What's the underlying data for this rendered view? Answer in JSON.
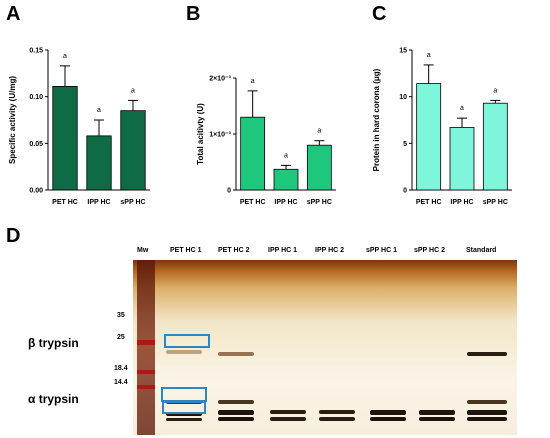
{
  "colors": {
    "panel_a_bar": "#0e6b45",
    "panel_b_bar": "#1fc77c",
    "panel_c_bar": "#7ff5dc",
    "box_outline": "#2e86c1"
  },
  "chart_data": [
    {
      "panel": "A",
      "type": "bar",
      "categories": [
        "PET HC",
        "IPP HC",
        "sPP HC"
      ],
      "values": [
        0.111,
        0.058,
        0.085
      ],
      "errors": [
        0.022,
        0.017,
        0.011
      ],
      "annotations": [
        "a",
        "a",
        "a"
      ],
      "ylabel": "Specific activity (U/mg)",
      "ylim": [
        0,
        0.15
      ],
      "yticks": [
        "0.00",
        "0.05",
        "0.10",
        "0.15"
      ],
      "ytick_values": [
        0,
        0.05,
        0.1,
        0.15
      ],
      "bar_color": "#0e6b45"
    },
    {
      "panel": "B",
      "type": "bar",
      "categories": [
        "PET HC",
        "IPP HC",
        "sPP HC"
      ],
      "values": [
        0.0013,
        0.00037,
        0.0008
      ],
      "errors": [
        0.00047,
        7e-05,
        8e-05
      ],
      "annotations": [
        "a",
        "a",
        "a"
      ],
      "ylabel": "Total acitivty (U)",
      "ylim": [
        0,
        0.0025
      ],
      "yticks": [
        "0",
        "1×10⁻³",
        "2×10⁻³"
      ],
      "ytick_values": [
        0,
        0.001,
        0.002
      ],
      "bar_color": "#1fc77c"
    },
    {
      "panel": "C",
      "type": "bar",
      "categories": [
        "PET HC",
        "IPP HC",
        "sPP HC"
      ],
      "values": [
        11.4,
        6.7,
        9.3
      ],
      "errors": [
        2.0,
        1.0,
        0.3
      ],
      "annotations": [
        "a",
        "a",
        "a"
      ],
      "ylabel": "Protein in hard corona (μg)",
      "ylim": [
        0,
        15
      ],
      "yticks": [
        "0",
        "5",
        "10",
        "15"
      ],
      "ytick_values": [
        0,
        5,
        10,
        15
      ],
      "bar_color": "#7ff5dc"
    }
  ],
  "gel": {
    "panel": "D",
    "lane_labels": [
      "Mw",
      "PET HC 1",
      "PET HC 2",
      "IPP HC 1",
      "IPP HC 2",
      "sPP HC 1",
      "sPP HC 2",
      "Standard"
    ],
    "mw_markers": [
      "35",
      "25",
      "18.4",
      "14.4"
    ],
    "band_labels": [
      "β trypsin",
      "α trypsin"
    ]
  }
}
